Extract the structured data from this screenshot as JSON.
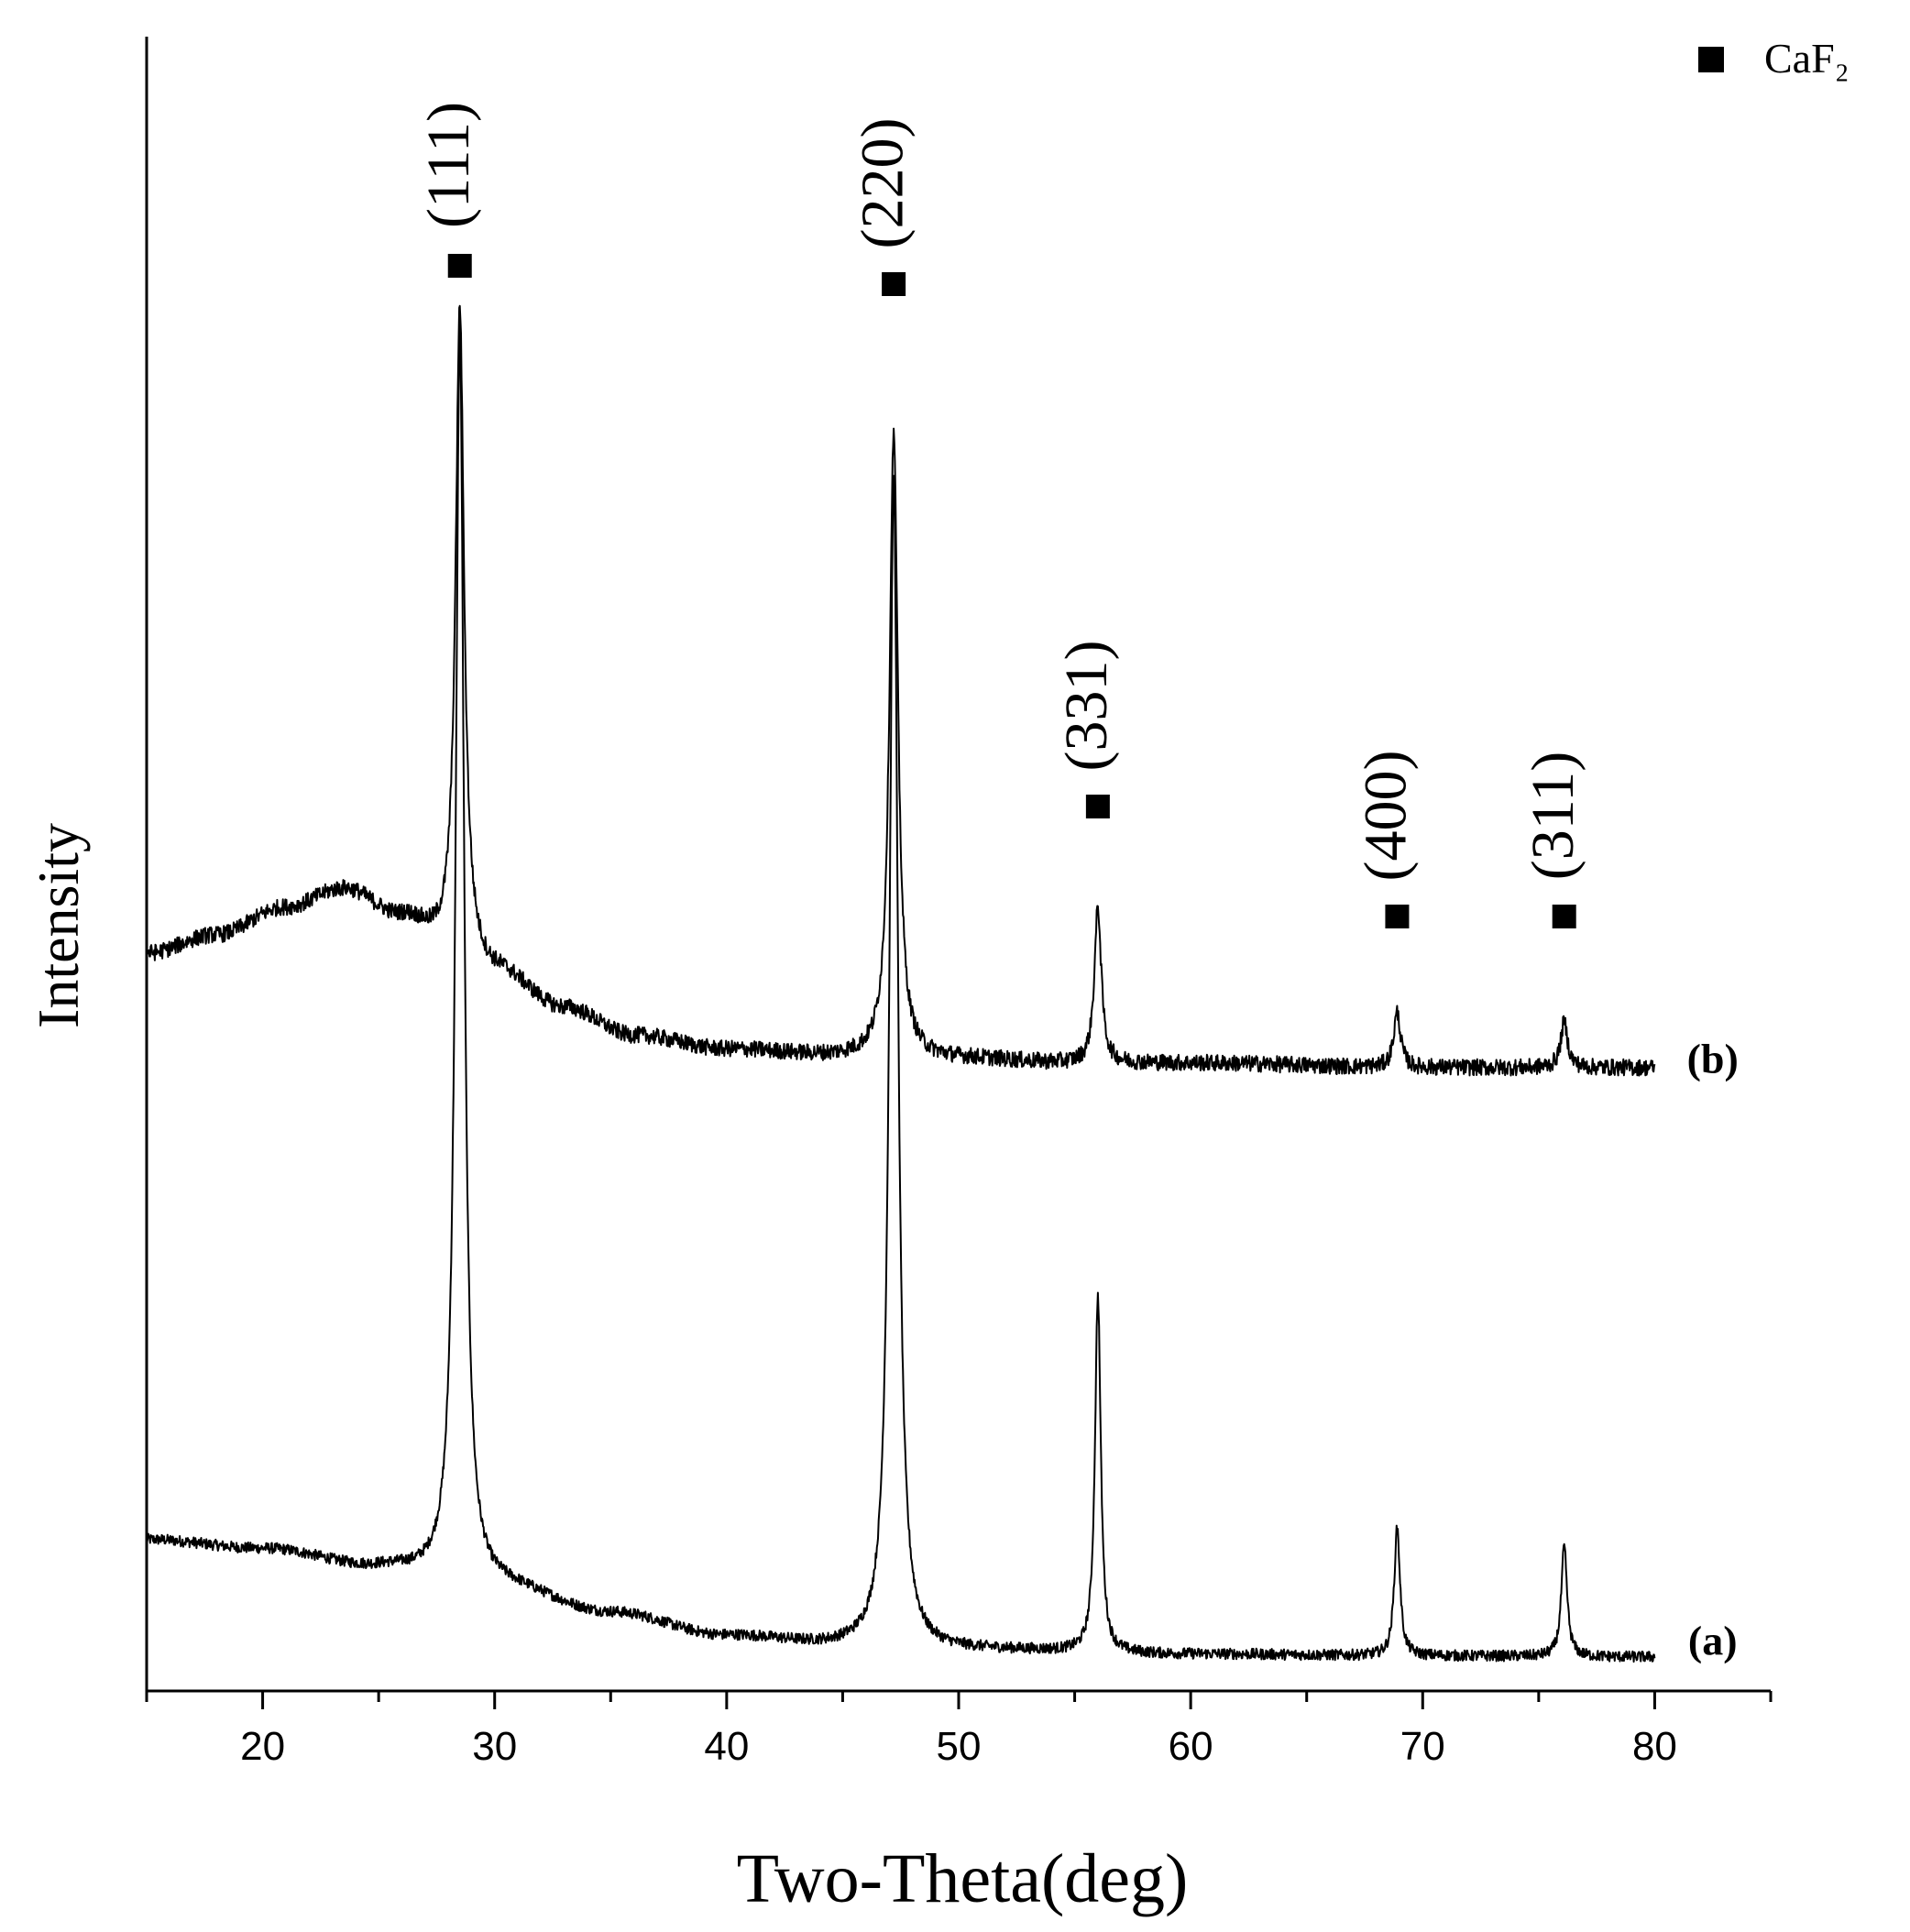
{
  "chart_data": {
    "type": "line",
    "xlabel": "Two-Theta(deg)",
    "ylabel": "Intensity",
    "xlim": [
      15,
      85
    ],
    "x_ticks": [
      20,
      30,
      40,
      50,
      60,
      70,
      80
    ],
    "x_ticks_minor_step": 5,
    "y_ticks_shown": false,
    "grid": false,
    "legend": {
      "position": "top-right",
      "marker": "square",
      "label": "CaF₂",
      "color": "#000000"
    },
    "series": [
      {
        "name": "(a)",
        "color": "#000000",
        "baseline": [
          [
            15,
            0.14
          ],
          [
            20,
            0.13
          ],
          [
            25,
            0.11
          ],
          [
            28,
            0.1
          ],
          [
            30,
            0.09
          ],
          [
            35,
            0.06
          ],
          [
            40,
            0.035
          ],
          [
            45,
            0.025
          ],
          [
            50,
            0.02
          ],
          [
            60,
            0.015
          ],
          [
            70,
            0.013
          ],
          [
            80,
            0.012
          ]
        ],
        "peaks": [
          {
            "x": 28.5,
            "height": 1.36,
            "width": 0.22
          },
          {
            "x": 47.2,
            "height": 1.28,
            "width": 0.22
          },
          {
            "x": 56.0,
            "height": 0.39,
            "width": 0.15
          },
          {
            "x": 68.9,
            "height": 0.14,
            "width": 0.15
          },
          {
            "x": 76.1,
            "height": 0.12,
            "width": 0.15
          }
        ],
        "noise": 0.006
      },
      {
        "name": "(b)",
        "color": "#000000",
        "baseline": [
          [
            15,
            0.78
          ],
          [
            18,
            0.8
          ],
          [
            21,
            0.83
          ],
          [
            23.5,
            0.85
          ],
          [
            26,
            0.82
          ],
          [
            28,
            0.79
          ],
          [
            30,
            0.76
          ],
          [
            33,
            0.72
          ],
          [
            36,
            0.69
          ],
          [
            40,
            0.675
          ],
          [
            45,
            0.668
          ],
          [
            50,
            0.665
          ],
          [
            55,
            0.66
          ],
          [
            60,
            0.66
          ],
          [
            70,
            0.655
          ],
          [
            80,
            0.655
          ]
        ],
        "peaks": [
          {
            "x": 28.5,
            "height": 0.7,
            "width": 0.22
          },
          {
            "x": 47.2,
            "height": 0.68,
            "width": 0.22
          },
          {
            "x": 56.0,
            "height": 0.17,
            "width": 0.18
          },
          {
            "x": 68.9,
            "height": 0.06,
            "width": 0.18
          },
          {
            "x": 76.1,
            "height": 0.05,
            "width": 0.18
          }
        ],
        "noise": 0.009
      }
    ],
    "annotations": [
      {
        "text": "(111)",
        "x": 28.5,
        "y": 1.64
      },
      {
        "text": "(220)",
        "x": 47.2,
        "y": 1.62
      },
      {
        "text": "(331)",
        "x": 56.0,
        "y": 1.05
      },
      {
        "text": "(400)",
        "x": 68.9,
        "y": 0.93
      },
      {
        "text": "(311)",
        "x": 76.1,
        "y": 0.93
      }
    ],
    "markers": [
      {
        "x": 28.5,
        "y": 1.53
      },
      {
        "x": 47.2,
        "y": 1.51
      },
      {
        "x": 56.0,
        "y": 0.94
      },
      {
        "x": 68.9,
        "y": 0.82
      },
      {
        "x": 76.1,
        "y": 0.82
      }
    ],
    "series_labels": [
      {
        "text": "(b)",
        "x": 82.5,
        "y": 0.66
      },
      {
        "text": "(a)",
        "x": 82.5,
        "y": 0.025
      }
    ]
  }
}
